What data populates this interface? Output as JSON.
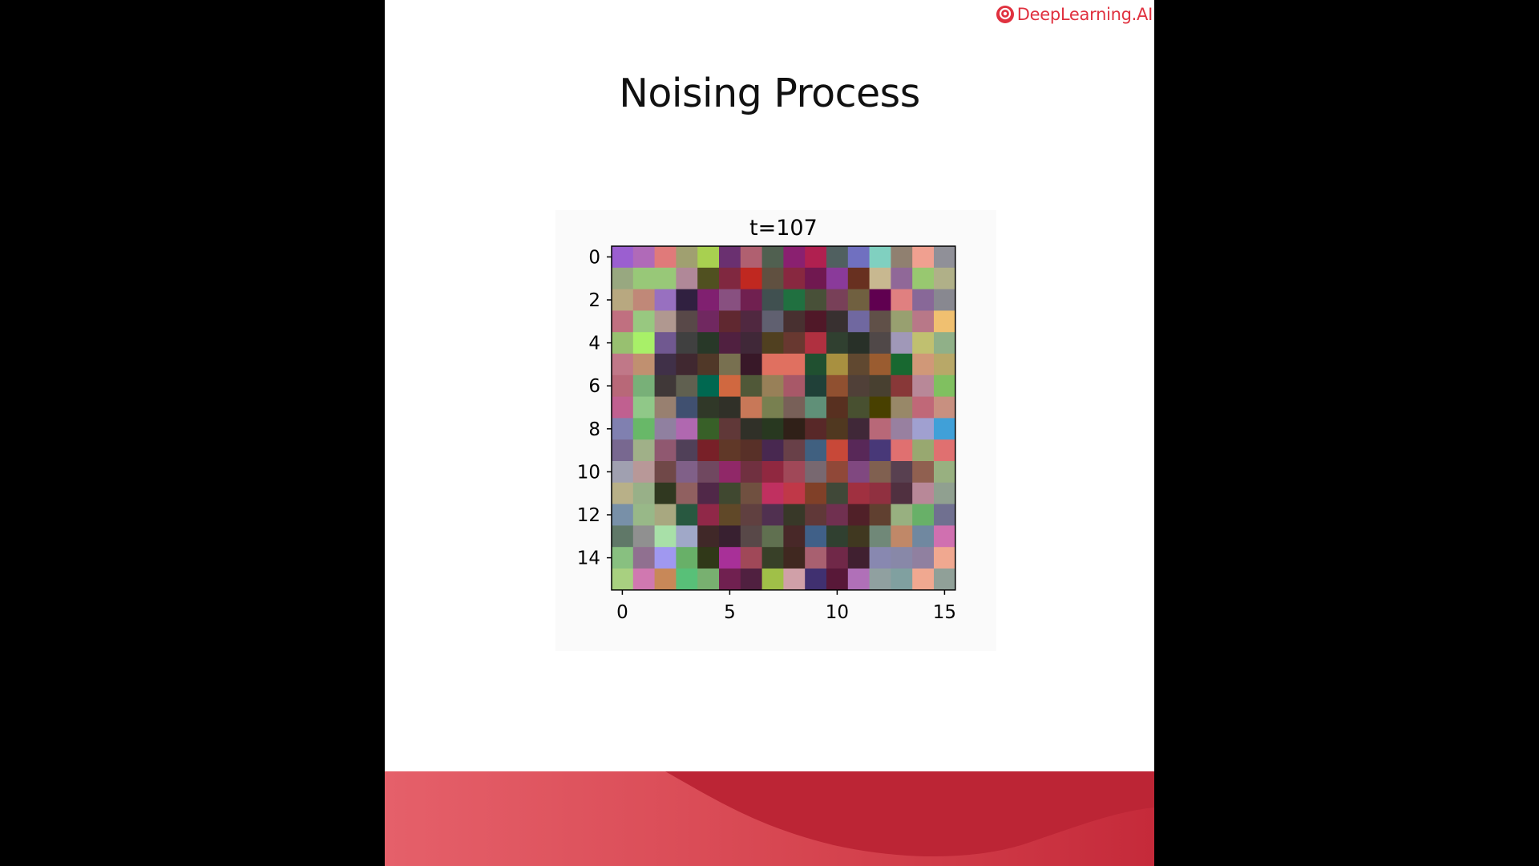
{
  "brand": {
    "logo_text": "DeepLearning.AI",
    "color": "#e0313f"
  },
  "slide": {
    "title": "Noising Process"
  },
  "chart_data": {
    "type": "heatmap",
    "title": "t=107",
    "xlabel": "",
    "ylabel": "",
    "xlim": [
      -0.5,
      15.5
    ],
    "ylim": [
      15.5,
      -0.5
    ],
    "xticks": [
      "0",
      "5",
      "10",
      "15"
    ],
    "yticks": [
      "0",
      "2",
      "4",
      "6",
      "8",
      "10",
      "12",
      "14"
    ],
    "grid": false,
    "cells": [
      [
        "#9b5fd0",
        "#b06ab8",
        "#e07a7a",
        "#a0a070",
        "#a8d050",
        "#6a3070",
        "#b06070",
        "#506050",
        "#8a2070",
        "#b02050",
        "#506060",
        "#7070c0",
        "#80d0c0",
        "#908070",
        "#f0a090",
        "#909098"
      ],
      [
        "#98a880",
        "#98c878",
        "#98c878",
        "#b08898",
        "#505020",
        "#802840",
        "#c02820",
        "#605040",
        "#882840",
        "#701850",
        "#8a3a9a",
        "#683020",
        "#c8b890",
        "#906898",
        "#98c870",
        "#b0b088"
      ],
      [
        "#b8a880",
        "#c08878",
        "#9870c0",
        "#302040",
        "#802070",
        "#885080",
        "#702050",
        "#405050",
        "#207040",
        "#485038",
        "#784058",
        "#706040",
        "#600050",
        "#e08080",
        "#886898",
        "#888890"
      ],
      [
        "#c07080",
        "#98c880",
        "#b09890",
        "#584848",
        "#702860",
        "#602830",
        "#502840",
        "#606070",
        "#483030",
        "#501828",
        "#383030",
        "#7068a0",
        "#605048",
        "#98a070",
        "#b87888",
        "#f0c070"
      ],
      [
        "#98c070",
        "#a8f068",
        "#705890",
        "#404040",
        "#283828",
        "#502040",
        "#402838",
        "#504020",
        "#683830",
        "#b03040",
        "#304030",
        "#283028",
        "#504848",
        "#a098b8",
        "#c0c070",
        "#90b088"
      ],
      [
        "#c07888",
        "#c09070",
        "#403048",
        "#402830",
        "#503828",
        "#787050",
        "#381828",
        "#e07060",
        "#e07060",
        "#205030",
        "#a89040",
        "#604830",
        "#9a5c30",
        "#186830",
        "#d09878",
        "#b8a868"
      ],
      [
        "#b86878",
        "#78b078",
        "#403838",
        "#606050",
        "#006850",
        "#d06840",
        "#505838",
        "#988058",
        "#a85868",
        "#204038",
        "#905030",
        "#504038",
        "#484030",
        "#883838",
        "#b88898",
        "#80c060"
      ],
      [
        "#c06090",
        "#90c888",
        "#988070",
        "#405070",
        "#303828",
        "#303028",
        "#c87858",
        "#788050",
        "#786058",
        "#609078",
        "#583020",
        "#485030",
        "#484000",
        "#988868",
        "#c06878",
        "#c89080"
      ],
      [
        "#8080b0",
        "#68b868",
        "#9080a0",
        "#b068b0",
        "#386028",
        "#603838",
        "#303028",
        "#283820",
        "#302018",
        "#582828",
        "#503820",
        "#402838",
        "#b86878",
        "#9880a0",
        "#a0a0d0",
        "#40a0d8"
      ],
      [
        "#786890",
        "#a0b088",
        "#905870",
        "#504058",
        "#782028",
        "#603828",
        "#583028",
        "#482850",
        "#684048",
        "#406080",
        "#c84838",
        "#582858",
        "#483878",
        "#e07070",
        "#98a870",
        "#e07070"
      ],
      [
        "#a0a0b0",
        "#b89898",
        "#704848",
        "#806088",
        "#704860",
        "#902868",
        "#703040",
        "#902840",
        "#a04858",
        "#786870",
        "#904838",
        "#804880",
        "#806050",
        "#584050",
        "#906050",
        "#98b080"
      ],
      [
        "#b8b088",
        "#98b088",
        "#303820",
        "#906060",
        "#502848",
        "#404830",
        "#705040",
        "#c03060",
        "#c03848",
        "#804028",
        "#404838",
        "#a03040",
        "#903040",
        "#503040",
        "#b88898",
        "#90a090"
      ],
      [
        "#7890a8",
        "#98b888",
        "#a8a880",
        "#285840",
        "#902848",
        "#604828",
        "#604040",
        "#503050",
        "#383828",
        "#603838",
        "#703050",
        "#502028",
        "#604030",
        "#98b080",
        "#68b068",
        "#707090"
      ],
      [
        "#607868",
        "#909090",
        "#a8e0a8",
        "#a0a8c8",
        "#402828",
        "#382030",
        "#584848",
        "#607050",
        "#482828",
        "#406088",
        "#304030",
        "#403820",
        "#708878",
        "#c08868",
        "#7088a0",
        "#d070b0"
      ],
      [
        "#88c080",
        "#907090",
        "#a098f0",
        "#68b068",
        "#303818",
        "#a83098",
        "#a04858",
        "#384028",
        "#402820",
        "#a86070",
        "#702848",
        "#402030",
        "#8888b0",
        "#8888a8",
        "#9080a0",
        "#f0a890"
      ],
      [
        "#a8d080",
        "#d078b0",
        "#c88858",
        "#58c078",
        "#78b070",
        "#702050",
        "#502040",
        "#a0c048",
        "#d0a0a8",
        "#403070",
        "#581838",
        "#b070b8",
        "#90a0a0",
        "#80a0a0",
        "#f0a890",
        "#90a098"
      ]
    ]
  }
}
